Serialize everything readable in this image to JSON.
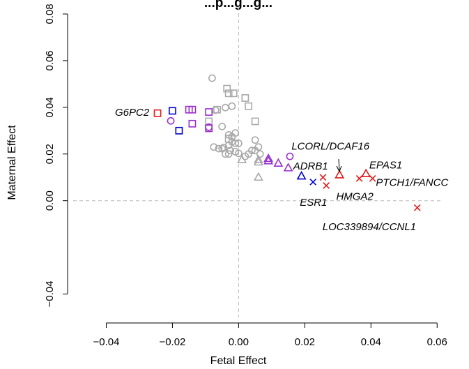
{
  "chart_data": {
    "type": "scatter",
    "title": "...p...g...g...",
    "xlabel": "Fetal Effect",
    "ylabel": "Maternal Effect",
    "xlim": [
      -0.05,
      0.061
    ],
    "ylim": [
      -0.05,
      0.083
    ],
    "xticks": [
      -0.04,
      -0.02,
      0.0,
      0.02,
      0.04,
      0.06
    ],
    "xtick_labels": [
      "−0.04",
      "−0.02",
      "0.00",
      "0.02",
      "0.04",
      "0.06"
    ],
    "yticks": [
      -0.04,
      0.0,
      0.02,
      0.04,
      0.06,
      0.08
    ],
    "ytick_labels": [
      "−0.04",
      "0.00",
      "0.02",
      "0.04",
      "0.06",
      "0.08"
    ],
    "reference_lines": {
      "x": 0,
      "y": 0,
      "style": "dashed",
      "color": "#bbbbbb"
    },
    "colors": {
      "gray": "#a9a9a9",
      "purple": "#9932cc",
      "blue": "#0000cd",
      "red": "#e41a1c"
    },
    "marker_shapes": [
      "circle",
      "square",
      "triangle",
      "cross"
    ],
    "points": [
      {
        "x": -0.008,
        "y": 0.0525,
        "shape": "circle",
        "color": "gray"
      },
      {
        "x": -0.007,
        "y": 0.0388,
        "shape": "circle",
        "color": "gray"
      },
      {
        "x": -0.005,
        "y": 0.0318,
        "shape": "circle",
        "color": "gray"
      },
      {
        "x": -0.004,
        "y": 0.0399,
        "shape": "circle",
        "color": "gray"
      },
      {
        "x": -0.002,
        "y": 0.0405,
        "shape": "circle",
        "color": "gray"
      },
      {
        "x": -0.002,
        "y": 0.0252,
        "shape": "circle",
        "color": "gray"
      },
      {
        "x": -0.001,
        "y": 0.029,
        "shape": "circle",
        "color": "gray"
      },
      {
        "x": -0.003,
        "y": 0.0282,
        "shape": "circle",
        "color": "gray"
      },
      {
        "x": -0.002,
        "y": 0.0274,
        "shape": "circle",
        "color": "gray"
      },
      {
        "x": -0.003,
        "y": 0.0237,
        "shape": "circle",
        "color": "gray"
      },
      {
        "x": -0.0045,
        "y": 0.0228,
        "shape": "circle",
        "color": "gray"
      },
      {
        "x": -0.006,
        "y": 0.0223,
        "shape": "circle",
        "color": "gray"
      },
      {
        "x": -0.0075,
        "y": 0.023,
        "shape": "circle",
        "color": "gray"
      },
      {
        "x": -0.005,
        "y": 0.0223,
        "shape": "circle",
        "color": "gray"
      },
      {
        "x": -0.004,
        "y": 0.02,
        "shape": "circle",
        "color": "gray"
      },
      {
        "x": -0.0025,
        "y": 0.0215,
        "shape": "circle",
        "color": "gray"
      },
      {
        "x": -0.001,
        "y": 0.0246,
        "shape": "circle",
        "color": "gray"
      },
      {
        "x": 0.0,
        "y": 0.0246,
        "shape": "circle",
        "color": "gray"
      },
      {
        "x": -0.001,
        "y": 0.021,
        "shape": "circle",
        "color": "gray"
      },
      {
        "x": -0.003,
        "y": 0.02,
        "shape": "circle",
        "color": "gray"
      },
      {
        "x": 0.0,
        "y": 0.0203,
        "shape": "circle",
        "color": "gray"
      },
      {
        "x": 0.005,
        "y": 0.026,
        "shape": "circle",
        "color": "gray"
      },
      {
        "x": 0.006,
        "y": 0.023,
        "shape": "circle",
        "color": "gray"
      },
      {
        "x": 0.003,
        "y": 0.02,
        "shape": "circle",
        "color": "gray"
      },
      {
        "x": 0.002,
        "y": 0.019,
        "shape": "circle",
        "color": "gray"
      },
      {
        "x": 0.005,
        "y": 0.0215,
        "shape": "circle",
        "color": "gray"
      },
      {
        "x": 0.0065,
        "y": 0.02,
        "shape": "circle",
        "color": "gray"
      },
      {
        "x": 0.004,
        "y": 0.0215,
        "shape": "circle",
        "color": "gray"
      },
      {
        "x": -0.0035,
        "y": 0.048,
        "shape": "square",
        "color": "gray"
      },
      {
        "x": -0.003,
        "y": 0.046,
        "shape": "square",
        "color": "gray"
      },
      {
        "x": -0.0015,
        "y": 0.046,
        "shape": "square",
        "color": "gray"
      },
      {
        "x": 0.002,
        "y": 0.044,
        "shape": "square",
        "color": "gray"
      },
      {
        "x": 0.003,
        "y": 0.0405,
        "shape": "square",
        "color": "gray"
      },
      {
        "x": 0.005,
        "y": 0.034,
        "shape": "square",
        "color": "gray"
      },
      {
        "x": -0.009,
        "y": 0.034,
        "shape": "square",
        "color": "gray"
      },
      {
        "x": -0.0065,
        "y": 0.039,
        "shape": "square",
        "color": "gray"
      },
      {
        "x": -0.003,
        "y": 0.0265,
        "shape": "square",
        "color": "gray"
      },
      {
        "x": 0.001,
        "y": 0.0175,
        "shape": "triangle",
        "color": "gray"
      },
      {
        "x": 0.006,
        "y": 0.0175,
        "shape": "triangle",
        "color": "gray"
      },
      {
        "x": 0.006,
        "y": 0.0165,
        "shape": "triangle",
        "color": "gray"
      },
      {
        "x": 0.006,
        "y": 0.01,
        "shape": "triangle",
        "color": "gray"
      },
      {
        "x": -0.0205,
        "y": 0.0342,
        "shape": "circle",
        "color": "purple"
      },
      {
        "x": -0.009,
        "y": 0.0315,
        "shape": "circle",
        "color": "purple"
      },
      {
        "x": 0.0155,
        "y": 0.019,
        "shape": "circle",
        "color": "purple"
      },
      {
        "x": -0.015,
        "y": 0.039,
        "shape": "square",
        "color": "purple"
      },
      {
        "x": -0.014,
        "y": 0.039,
        "shape": "square",
        "color": "purple"
      },
      {
        "x": -0.014,
        "y": 0.033,
        "shape": "square",
        "color": "purple"
      },
      {
        "x": -0.009,
        "y": 0.038,
        "shape": "square",
        "color": "purple"
      },
      {
        "x": -0.009,
        "y": 0.031,
        "shape": "square",
        "color": "purple"
      },
      {
        "x": 0.009,
        "y": 0.018,
        "shape": "triangle",
        "color": "purple"
      },
      {
        "x": 0.009,
        "y": 0.017,
        "shape": "triangle",
        "color": "purple"
      },
      {
        "x": 0.012,
        "y": 0.016,
        "shape": "triangle",
        "color": "purple"
      },
      {
        "x": 0.015,
        "y": 0.014,
        "shape": "triangle",
        "color": "purple"
      },
      {
        "x": -0.02,
        "y": 0.0385,
        "shape": "square",
        "color": "blue"
      },
      {
        "x": -0.018,
        "y": 0.03,
        "shape": "square",
        "color": "blue"
      },
      {
        "x": 0.019,
        "y": 0.0105,
        "shape": "triangle",
        "color": "blue"
      },
      {
        "x": 0.0225,
        "y": 0.008,
        "shape": "cross",
        "color": "blue"
      },
      {
        "x": -0.0245,
        "y": 0.0375,
        "shape": "square",
        "color": "red"
      },
      {
        "x": 0.0305,
        "y": 0.011,
        "shape": "triangle",
        "color": "red"
      },
      {
        "x": 0.0385,
        "y": 0.0115,
        "shape": "triangle",
        "color": "red"
      },
      {
        "x": 0.0255,
        "y": 0.01,
        "shape": "cross",
        "color": "red"
      },
      {
        "x": 0.0265,
        "y": 0.0065,
        "shape": "cross",
        "color": "red"
      },
      {
        "x": 0.0365,
        "y": 0.0095,
        "shape": "cross",
        "color": "red"
      },
      {
        "x": 0.0405,
        "y": 0.0095,
        "shape": "cross",
        "color": "red"
      },
      {
        "x": 0.054,
        "y": -0.003,
        "shape": "cross",
        "color": "red"
      }
    ],
    "annotations": [
      {
        "text": "G6PC2",
        "x": -0.027,
        "y": 0.0375,
        "anchor": "end"
      },
      {
        "text": "LCORL/DCAF16",
        "x": 0.016,
        "y": 0.023,
        "anchor": "start"
      },
      {
        "text": "ADRB1",
        "x": 0.0165,
        "y": 0.0145,
        "anchor": "start"
      },
      {
        "text": "EPAS1",
        "x": 0.0395,
        "y": 0.015,
        "anchor": "start"
      },
      {
        "text": "PTCH1/FANCC",
        "x": 0.0415,
        "y": 0.0075,
        "anchor": "start"
      },
      {
        "text": "HMGA2",
        "x": 0.0295,
        "y": 0.0015,
        "anchor": "start"
      },
      {
        "text": "ESR1",
        "x": 0.0185,
        "y": -0.001,
        "anchor": "start"
      },
      {
        "text": "LOC339894/CCNL1",
        "x": 0.0395,
        "y": -0.0115,
        "anchor": "middle"
      }
    ]
  }
}
